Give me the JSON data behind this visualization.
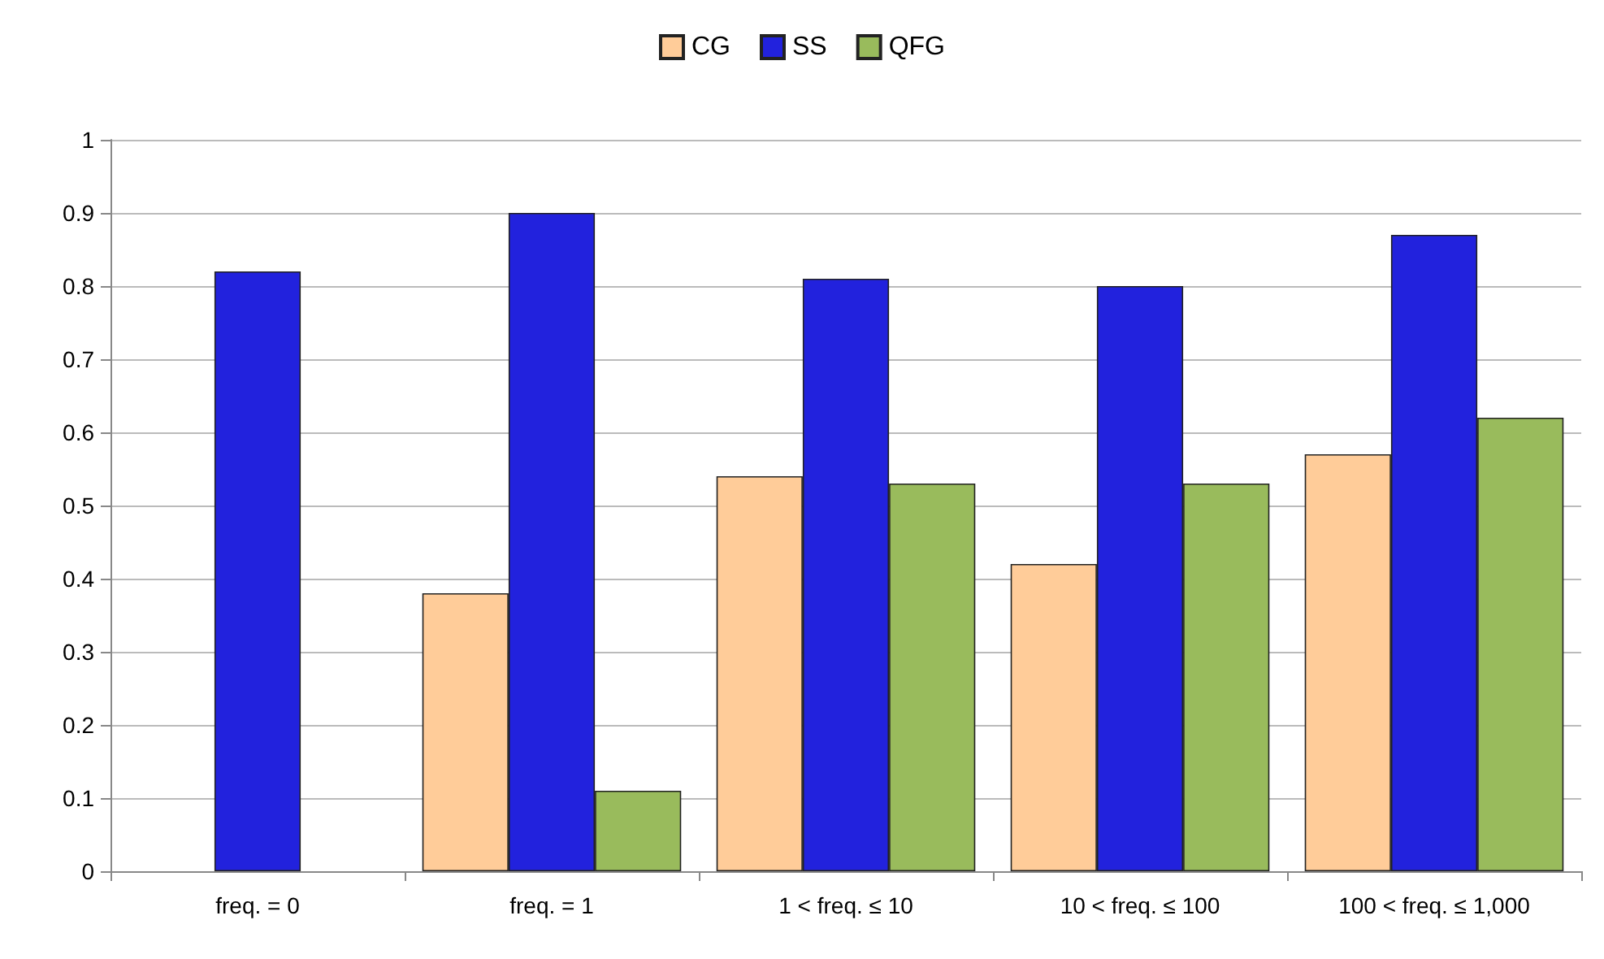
{
  "chart_data": {
    "type": "bar",
    "categories": [
      "freq. = 0",
      "freq. = 1",
      "1 < freq. ≤ 10",
      "10 < freq. ≤ 100",
      "100 < freq. ≤ 1,000"
    ],
    "series": [
      {
        "name": "CG",
        "color": "#ffcc99",
        "values": [
          null,
          0.38,
          0.54,
          0.42,
          0.57
        ]
      },
      {
        "name": "SS",
        "color": "#2222dd",
        "values": [
          0.82,
          0.9,
          0.81,
          0.8,
          0.87
        ]
      },
      {
        "name": "QFG",
        "color": "#99bb5c",
        "values": [
          null,
          0.11,
          0.53,
          0.53,
          0.62
        ]
      }
    ],
    "ylim": [
      0,
      1
    ],
    "yticks": [
      0,
      0.1,
      0.2,
      0.3,
      0.4,
      0.5,
      0.6,
      0.7,
      0.8,
      0.9,
      1
    ],
    "grid": "y",
    "legend": "top"
  }
}
